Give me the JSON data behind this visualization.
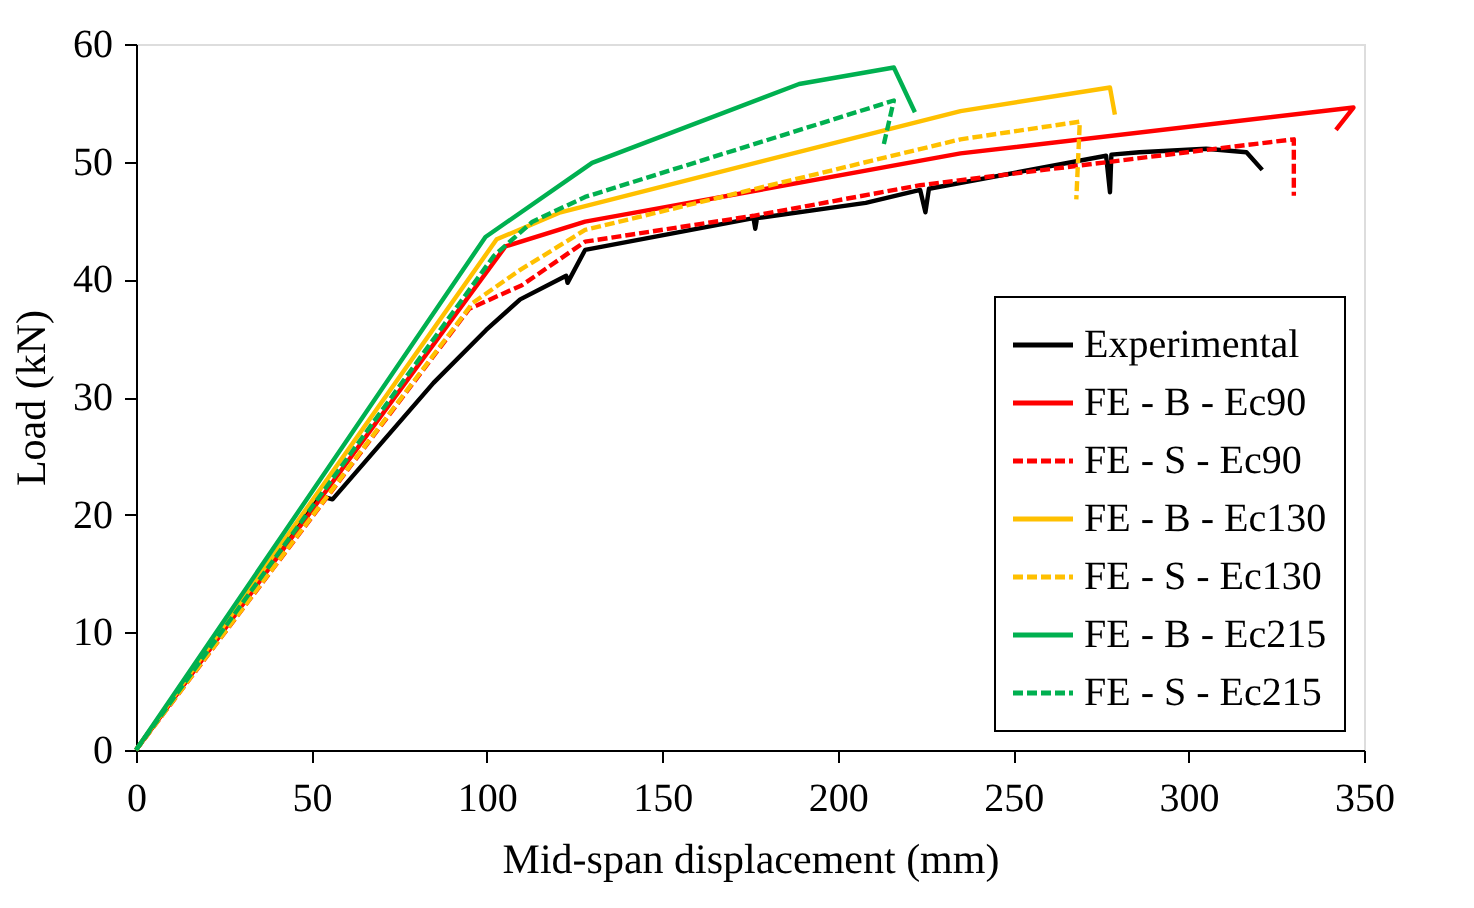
{
  "chart_data": {
    "type": "line",
    "xlabel": "Mid-span displacement (mm)",
    "ylabel": "Load (kN)",
    "xlim": [
      0,
      350
    ],
    "xticks": [
      0,
      50,
      100,
      150,
      200,
      250,
      300,
      350
    ],
    "ylim": [
      0,
      60
    ],
    "yticks": [
      0,
      10,
      20,
      30,
      40,
      50,
      60
    ],
    "grid": false,
    "legend": "bottom right",
    "marker": "none",
    "series": [
      {
        "name": "Experimental",
        "color": "#000000",
        "line_style": "solid",
        "x": [
          0,
          52.5,
          56,
          84.8,
          99.8,
          109.5,
          122.6,
          123,
          128,
          176,
          176.5,
          177,
          208,
          223.5,
          225,
          226,
          276.5,
          277.6,
          278,
          286,
          305,
          316.5,
          321
        ],
        "values": [
          0,
          21.6,
          21.3,
          31.2,
          35.7,
          38.3,
          40.3,
          39.7,
          42.5,
          45.2,
          44.3,
          45.2,
          46.5,
          47.6,
          45.7,
          47.7,
          50.5,
          47.4,
          50.6,
          50.8,
          51.1,
          50.8,
          49.3
        ]
      },
      {
        "name": "FE - B - Ec90",
        "color": "#ff0000",
        "line_style": "solid",
        "x": [
          0,
          105.3,
          128,
          235,
          347,
          342
        ],
        "values": [
          0,
          42.8,
          44.9,
          50.7,
          54.6,
          52.7
        ]
      },
      {
        "name": "FE - S - Ec90",
        "color": "#ff0000",
        "line_style": "dashed",
        "x": [
          0,
          95,
          110,
          128,
          176,
          223.5,
          305,
          330,
          330
        ],
        "values": [
          0,
          37.5,
          39.5,
          43.2,
          45.4,
          48.0,
          51.0,
          51.9,
          47.1
        ]
      },
      {
        "name": "FE - B - Ec130",
        "color": "#ffc000",
        "line_style": "solid",
        "x": [
          0,
          102.8,
          121,
          235,
          277.6,
          279
        ],
        "values": [
          0,
          43.4,
          45.7,
          54.3,
          56.3,
          54.0
        ]
      },
      {
        "name": "FE - S - Ec130",
        "color": "#ffc000",
        "line_style": "dashed",
        "x": [
          0,
          96,
          109.5,
          128,
          235,
          269,
          268
        ],
        "values": [
          0,
          38,
          40.8,
          44.2,
          51.9,
          53.4,
          46.8
        ]
      },
      {
        "name": "FE - B - Ec215",
        "color": "#00b050",
        "line_style": "solid",
        "x": [
          0,
          99.6,
          130,
          189,
          216,
          222
        ],
        "values": [
          0,
          43.6,
          49.9,
          56.6,
          58.0,
          54.2
        ]
      },
      {
        "name": "FE - S - Ec215",
        "color": "#00b050",
        "line_style": "dashed",
        "x": [
          0,
          102,
          113,
          128,
          216,
          213
        ],
        "values": [
          0,
          42,
          44.9,
          47,
          55.2,
          51.3
        ]
      }
    ]
  }
}
